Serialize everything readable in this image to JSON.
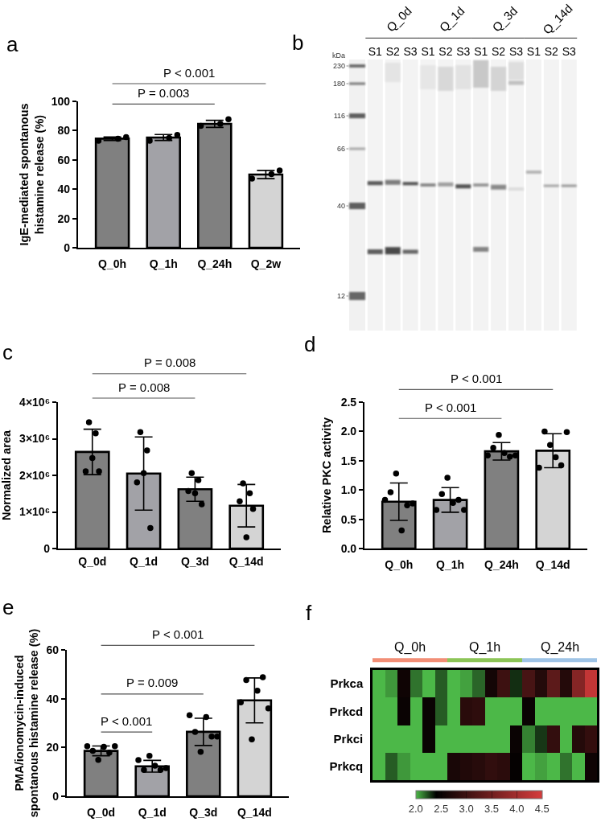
{
  "chart_data": [
    {
      "type": "bar",
      "title": "a",
      "ylabel": "IgE-mediated spontanous\nhistamine release (%)",
      "categories": [
        "Q_0h",
        "Q_1h",
        "Q_24h",
        "Q_2w"
      ],
      "series": [
        {
          "type": "bar",
          "colors": [
            "#808080",
            "#a2a2a7",
            "#808080",
            "#d4d4d4"
          ],
          "values": [
            74.5,
            75.3,
            84.6,
            50.0
          ],
          "errors": [
            1.2,
            2.0,
            2.4,
            2.8
          ]
        },
        {
          "type": "scatter",
          "color": "#000000",
          "x": [
            "Q_0h",
            "Q_1h",
            "Q_24h",
            "Q_2w"
          ],
          "values": [
            73.1,
            73.1,
            83.2,
            47.2
          ]
        },
        {
          "type": "scatter",
          "color": "#000000",
          "x": [
            "Q_0h",
            "Q_1h",
            "Q_24h",
            "Q_2w"
          ],
          "values": [
            74.4,
            75.0,
            84.6,
            50.3
          ]
        },
        {
          "type": "scatter",
          "color": "#000000",
          "x": [
            "Q_0h",
            "Q_1h",
            "Q_24h",
            "Q_2w"
          ],
          "values": [
            75.5,
            77.1,
            87.8,
            52.8
          ]
        }
      ],
      "ylim": [
        0,
        100
      ],
      "yticks": [
        0,
        20,
        40,
        60,
        80,
        100
      ],
      "marker": "circle",
      "annotations": [
        "P < 0.001",
        "P = 0.003"
      ]
    },
    {
      "type": "other",
      "title": "b",
      "categories": [
        "S1",
        "S2",
        "S3",
        "S1",
        "S2",
        "S3",
        "S1",
        "S2",
        "S3",
        "S1",
        "S2",
        "S3"
      ],
      "annotations": [
        "Q_0d",
        "Q_1d",
        "Q_3d",
        "Q_14d",
        "kDa",
        "230",
        "180",
        "116",
        "66",
        "40",
        "12"
      ]
    },
    {
      "type": "bar",
      "title": "c",
      "ylabel": "Normalized area",
      "categories": [
        "Q_0d",
        "Q_1d",
        "Q_3d",
        "Q_14d"
      ],
      "series": [
        {
          "type": "bar",
          "colors": [
            "#808080",
            "#a2a2a7",
            "#808080",
            "#d4d4d4"
          ],
          "values": [
            2640000,
            2050000,
            1620000,
            1170000
          ],
          "errors": [
            620000,
            1000000,
            330000,
            580000
          ]
        },
        {
          "type": "scatter",
          "color": "#000000",
          "x": [
            "Q_0d",
            "Q_1d",
            "Q_3d",
            "Q_14d"
          ],
          "values": [
            2110000,
            1810000,
            1570000,
            1290000
          ]
        },
        {
          "type": "scatter",
          "color": "#000000",
          "x": [
            "Q_0d",
            "Q_1d",
            "Q_3d",
            "Q_14d"
          ],
          "values": [
            3450000,
            3180000,
            2060000,
            1780000
          ]
        },
        {
          "type": "scatter",
          "color": "#000000",
          "x": [
            "Q_0d",
            "Q_1d",
            "Q_3d",
            "Q_14d"
          ],
          "values": [
            2470000,
            2060000,
            1510000,
            310000
          ]
        },
        {
          "type": "scatter",
          "color": "#000000",
          "x": [
            "Q_0d",
            "Q_1d",
            "Q_3d",
            "Q_14d"
          ],
          "values": [
            3150000,
            2680000,
            1870000,
            1510000
          ]
        },
        {
          "type": "scatter",
          "color": "#000000",
          "x": [
            "Q_0d",
            "Q_1d",
            "Q_3d",
            "Q_14d"
          ],
          "values": [
            2110000,
            560000,
            1210000,
            1080000
          ]
        }
      ],
      "ylim": [
        0,
        4000000
      ],
      "yticks": [
        0,
        {
          "value": 1000000,
          "label": "1×10⁶"
        },
        {
          "value": 2000000,
          "label": "2×10⁶"
        },
        {
          "value": 3000000,
          "label": "3×10⁶"
        },
        {
          "value": 4000000,
          "label": "4×10⁶"
        }
      ],
      "marker": "circle",
      "annotations": [
        "P = 0.008",
        "P = 0.008"
      ]
    },
    {
      "type": "bar",
      "title": "d",
      "ylabel": "Relative PKC activity",
      "categories": [
        "Q_0h",
        "Q_1h",
        "Q_24h",
        "Q_14d"
      ],
      "series": [
        {
          "type": "bar",
          "colors": [
            "#808080",
            "#a2a2a7",
            "#808080",
            "#d4d4d4"
          ],
          "values": [
            0.8,
            0.83,
            1.66,
            1.67
          ],
          "errors": [
            0.32,
            0.21,
            0.15,
            0.29
          ]
        },
        {
          "type": "scatter",
          "color": "#000000",
          "x": [
            "Q_0h",
            "Q_1h",
            "Q_24h",
            "Q_14d"
          ],
          "values": [
            0.83,
            0.66,
            1.59,
            1.38
          ]
        },
        {
          "type": "scatter",
          "color": "#000000",
          "x": [
            "Q_0h",
            "Q_1h",
            "Q_24h",
            "Q_14d"
          ],
          "values": [
            0.96,
            0.93,
            1.72,
            2.0
          ]
        },
        {
          "type": "scatter",
          "color": "#000000",
          "x": [
            "Q_0h",
            "Q_1h",
            "Q_24h",
            "Q_14d"
          ],
          "values": [
            1.28,
            1.21,
            1.94,
            1.77
          ]
        },
        {
          "type": "scatter",
          "color": "#000000",
          "x": [
            "Q_0h",
            "Q_1h",
            "Q_24h",
            "Q_14d"
          ],
          "values": [
            0.31,
            0.78,
            1.63,
            1.56
          ]
        },
        {
          "type": "scatter",
          "color": "#000000",
          "x": [
            "Q_0h",
            "Q_1h",
            "Q_24h",
            "Q_14d"
          ],
          "values": [
            0.74,
            0.83,
            1.57,
            1.42
          ]
        },
        {
          "type": "scatter",
          "color": "#000000",
          "x": [
            "Q_0h",
            "Q_1h",
            "Q_24h",
            "Q_14d"
          ],
          "values": [
            0.77,
            0.66,
            1.59,
            1.99
          ]
        }
      ],
      "ylim": [
        0,
        2.5
      ],
      "yticks": [
        {
          "value": 0,
          "label": "0.0"
        },
        0.5,
        {
          "value": 1,
          "label": "1.0"
        },
        1.5,
        {
          "value": 2,
          "label": "2.0"
        },
        2.5
      ],
      "marker": "circle",
      "annotations": [
        "P < 0.001",
        "P < 0.001"
      ]
    },
    {
      "type": "bar",
      "title": "e",
      "ylabel": "PMA/ionomycin-induced\nspontanous histamine release (%)",
      "categories": [
        "Q_0d",
        "Q_1d",
        "Q_3d",
        "Q_14d"
      ],
      "series": [
        {
          "type": "bar",
          "colors": [
            "#808080",
            "#a2a2a7",
            "#808080",
            "#d4d4d4"
          ],
          "values": [
            18.6,
            12.3,
            26.4,
            39.3
          ],
          "errors": [
            2.0,
            2.4,
            5.6,
            9.2
          ]
        },
        {
          "type": "scatter",
          "color": "#000000",
          "x": [
            "Q_0d",
            "Q_1d",
            "Q_3d",
            "Q_14d"
          ],
          "values": [
            20.5,
            14.8,
            33.2,
            38.5
          ]
        },
        {
          "type": "scatter",
          "color": "#000000",
          "x": [
            "Q_0d",
            "Q_1d",
            "Q_3d",
            "Q_14d"
          ],
          "values": [
            18.6,
            10.8,
            26.4,
            47.6
          ]
        },
        {
          "type": "scatter",
          "color": "#000000",
          "x": [
            "Q_0d",
            "Q_1d",
            "Q_3d",
            "Q_14d"
          ],
          "values": [
            14.9,
            16.6,
            18.2,
            23.3
          ]
        },
        {
          "type": "scatter",
          "color": "#000000",
          "x": [
            "Q_0d",
            "Q_1d",
            "Q_3d",
            "Q_14d"
          ],
          "values": [
            20.3,
            12.5,
            32.5,
            43.3
          ]
        },
        {
          "type": "scatter",
          "color": "#000000",
          "x": [
            "Q_0d",
            "Q_1d",
            "Q_3d",
            "Q_14d"
          ],
          "values": [
            17.9,
            10.8,
            24.5,
            48.8
          ]
        },
        {
          "type": "scatter",
          "color": "#000000",
          "x": [
            "Q_0d",
            "Q_1d",
            "Q_3d",
            "Q_14d"
          ],
          "values": [
            20.5,
            11.5,
            24.5,
            36.0
          ]
        }
      ],
      "ylim": [
        0,
        60
      ],
      "yticks": [
        0,
        20,
        40,
        60
      ],
      "marker": "circle",
      "annotations": [
        "P < 0.001",
        "P = 0.009",
        "P < 0.001"
      ]
    },
    {
      "type": "heatmap",
      "title": "f",
      "categories": [
        null,
        null,
        null,
        null,
        null,
        null,
        null,
        null,
        null,
        null,
        null,
        null,
        null,
        null,
        null,
        null,
        null,
        null
      ],
      "y_categories": [
        "Prkca",
        "Prkcd",
        "Prkci",
        "Prkcq"
      ],
      "cells": [
        [
          2.0,
          2.07,
          2.55,
          2.15,
          2.0,
          2.2,
          2.0,
          2.05,
          2.18,
          2.6,
          3.0,
          2.3,
          3.1,
          2.75,
          3.3,
          2.75,
          3.7,
          4.3
        ],
        [
          2.0,
          2.0,
          2.5,
          2.0,
          2.5,
          2.2,
          2.0,
          2.8,
          2.85,
          2.0,
          2.0,
          2.0,
          2.5,
          2.0,
          2.0,
          2.0,
          2.0,
          2.0
        ],
        [
          2.0,
          2.0,
          2.0,
          2.0,
          2.5,
          2.0,
          2.0,
          2.0,
          2.0,
          2.0,
          2.0,
          2.5,
          2.12,
          2.28,
          2.9,
          2.0,
          2.75,
          2.9
        ],
        [
          2.0,
          2.2,
          2.07,
          2.0,
          2.0,
          2.0,
          2.65,
          2.72,
          2.78,
          2.88,
          2.82,
          2.45,
          2.0,
          2.05,
          2.0,
          2.15,
          2.0,
          2.55
        ]
      ],
      "clim": [
        2.0,
        4.5
      ],
      "cticks": [
        {
          "value": 2,
          "label": "2.0"
        },
        {
          "value": 2.5,
          "label": "2.5"
        },
        {
          "value": 3,
          "label": "3.0"
        },
        {
          "value": 3.5,
          "label": "3.5"
        },
        {
          "value": 4,
          "label": "4.0"
        },
        {
          "value": 4.5,
          "label": "4.5"
        }
      ],
      "annotations": [
        "Q_0h",
        "Q_1h",
        "Q_24h"
      ]
    }
  ]
}
